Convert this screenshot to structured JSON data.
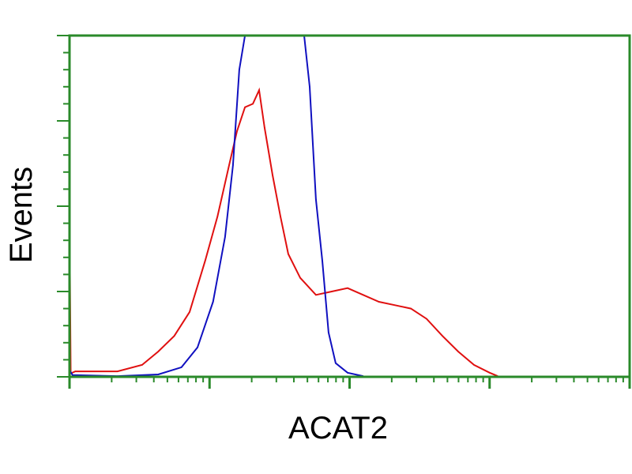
{
  "chart_data": {
    "type": "line",
    "title": "",
    "xlabel": "ACAT2",
    "ylabel": "Events",
    "x_scale": "log",
    "xlim": [
      1,
      10000
    ],
    "ylim": [
      0,
      100
    ],
    "grid": false,
    "axis_color": "#2a8a2a",
    "series": [
      {
        "color": "#e01010",
        "points": [
          [
            1,
            0
          ],
          [
            1,
            45.6
          ],
          [
            1.02,
            1
          ],
          [
            1.1,
            1.6
          ],
          [
            2.2,
            1.6
          ],
          [
            3.3,
            3.5
          ],
          [
            4.3,
            7.4
          ],
          [
            5.6,
            12
          ],
          [
            7.2,
            19
          ],
          [
            9.3,
            34
          ],
          [
            11.4,
            47
          ],
          [
            13.8,
            62
          ],
          [
            15.7,
            72
          ],
          [
            17.9,
            79
          ],
          [
            20.4,
            80
          ],
          [
            22.6,
            84
          ],
          [
            24.7,
            73
          ],
          [
            28.2,
            59
          ],
          [
            32.1,
            47
          ],
          [
            36.5,
            36
          ],
          [
            44.4,
            29
          ],
          [
            57.5,
            24
          ],
          [
            74.6,
            25
          ],
          [
            96.8,
            26
          ],
          [
            125,
            24
          ],
          [
            162,
            22
          ],
          [
            211,
            21
          ],
          [
            274,
            20
          ],
          [
            355,
            17
          ],
          [
            460,
            12
          ],
          [
            597,
            7.4
          ],
          [
            774,
            3.5
          ],
          [
            1000,
            1.2
          ],
          [
            1143,
            0.2
          ]
        ]
      },
      {
        "color": "#1010c0",
        "points": [
          [
            1,
            0
          ],
          [
            1,
            2
          ],
          [
            1.05,
            0.5
          ],
          [
            2.2,
            0.2
          ],
          [
            4.3,
            0.7
          ],
          [
            6.3,
            2.8
          ],
          [
            8.2,
            8.6
          ],
          [
            10.6,
            22
          ],
          [
            12.9,
            41
          ],
          [
            14.7,
            62
          ],
          [
            16.3,
            90
          ],
          [
            17.9,
            100
          ],
          [
            47.4,
            100
          ],
          [
            51.9,
            85
          ],
          [
            57.5,
            52
          ],
          [
            63.9,
            34
          ],
          [
            70.8,
            13
          ],
          [
            79.6,
            4
          ],
          [
            96.8,
            1.2
          ],
          [
            125,
            0.2
          ]
        ]
      }
    ]
  }
}
